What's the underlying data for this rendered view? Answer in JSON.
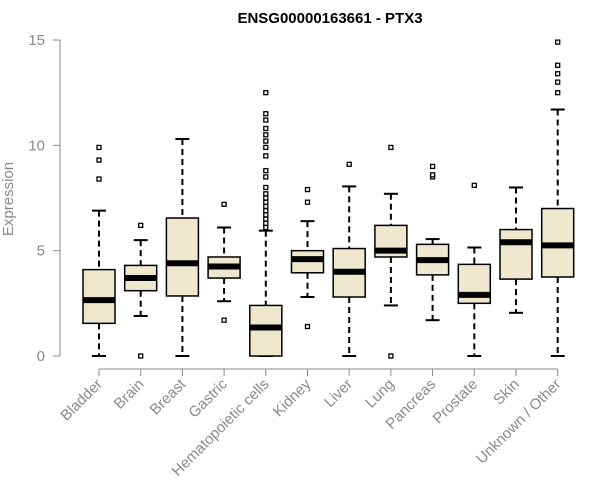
{
  "chart_data": {
    "type": "box",
    "title": "ENSG00000163661 - PTX3",
    "xlabel": "",
    "ylabel": "Expression",
    "ylim": [
      0,
      15
    ],
    "yticks": [
      0,
      5,
      10,
      15
    ],
    "colors": {
      "box_fill": "#efe8cf",
      "box_stroke": "#000000",
      "axis": "#8a8a8a"
    },
    "categories": [
      "Bladder",
      "Brain",
      "Breast",
      "Gastric",
      "Hematopoietic cells",
      "Kidney",
      "Liver",
      "Lung",
      "Pancreas",
      "Prostate",
      "Skin",
      "Unknown / Other"
    ],
    "boxes": [
      {
        "category": "Bladder",
        "whisker_low": 0,
        "q1": 1.55,
        "median": 2.65,
        "q3": 4.1,
        "whisker_high": 6.9,
        "outliers": [
          8.4,
          9.3,
          9.9
        ]
      },
      {
        "category": "Brain",
        "whisker_low": 1.9,
        "q1": 3.1,
        "median": 3.7,
        "q3": 4.3,
        "whisker_high": 5.5,
        "outliers": [
          0,
          6.2
        ]
      },
      {
        "category": "Breast",
        "whisker_low": 0,
        "q1": 2.85,
        "median": 4.4,
        "q3": 6.55,
        "whisker_high": 10.3,
        "outliers": []
      },
      {
        "category": "Gastric",
        "whisker_low": 2.6,
        "q1": 3.7,
        "median": 4.25,
        "q3": 4.7,
        "whisker_high": 6.1,
        "outliers": [
          1.7,
          7.2
        ]
      },
      {
        "category": "Hematopoietic cells",
        "whisker_low": 0,
        "q1": 0,
        "median": 1.35,
        "q3": 2.4,
        "whisker_high": 5.95,
        "outliers": [
          6.1,
          6.3,
          6.5,
          6.7,
          6.9,
          7.1,
          7.3,
          7.5,
          7.7,
          8.0,
          8.5,
          8.8,
          9.5,
          9.9,
          10.2,
          10.5,
          10.8,
          11.2,
          11.5,
          12.5
        ]
      },
      {
        "category": "Kidney",
        "whisker_low": 2.8,
        "q1": 3.95,
        "median": 4.6,
        "q3": 5.0,
        "whisker_high": 6.4,
        "outliers": [
          1.4,
          7.3,
          7.9
        ]
      },
      {
        "category": "Liver",
        "whisker_low": 0,
        "q1": 2.8,
        "median": 4.0,
        "q3": 5.1,
        "whisker_high": 8.05,
        "outliers": [
          9.1
        ]
      },
      {
        "category": "Lung",
        "whisker_low": 2.4,
        "q1": 4.7,
        "median": 5.0,
        "q3": 6.2,
        "whisker_high": 7.7,
        "outliers": [
          0,
          9.9
        ]
      },
      {
        "category": "Pancreas",
        "whisker_low": 1.7,
        "q1": 3.85,
        "median": 4.55,
        "q3": 5.3,
        "whisker_high": 5.55,
        "outliers": [
          8.5,
          8.6,
          9.0
        ]
      },
      {
        "category": "Prostate",
        "whisker_low": 0,
        "q1": 2.5,
        "median": 2.9,
        "q3": 4.35,
        "whisker_high": 5.15,
        "outliers": [
          8.1
        ]
      },
      {
        "category": "Skin",
        "whisker_low": 2.05,
        "q1": 3.65,
        "median": 5.4,
        "q3": 6.0,
        "whisker_high": 8.0,
        "outliers": []
      },
      {
        "category": "Unknown / Other",
        "whisker_low": 0,
        "q1": 3.75,
        "median": 5.25,
        "q3": 7.0,
        "whisker_high": 11.7,
        "outliers": [
          12.5,
          13.0,
          13.4,
          13.8,
          14.9
        ]
      }
    ]
  }
}
